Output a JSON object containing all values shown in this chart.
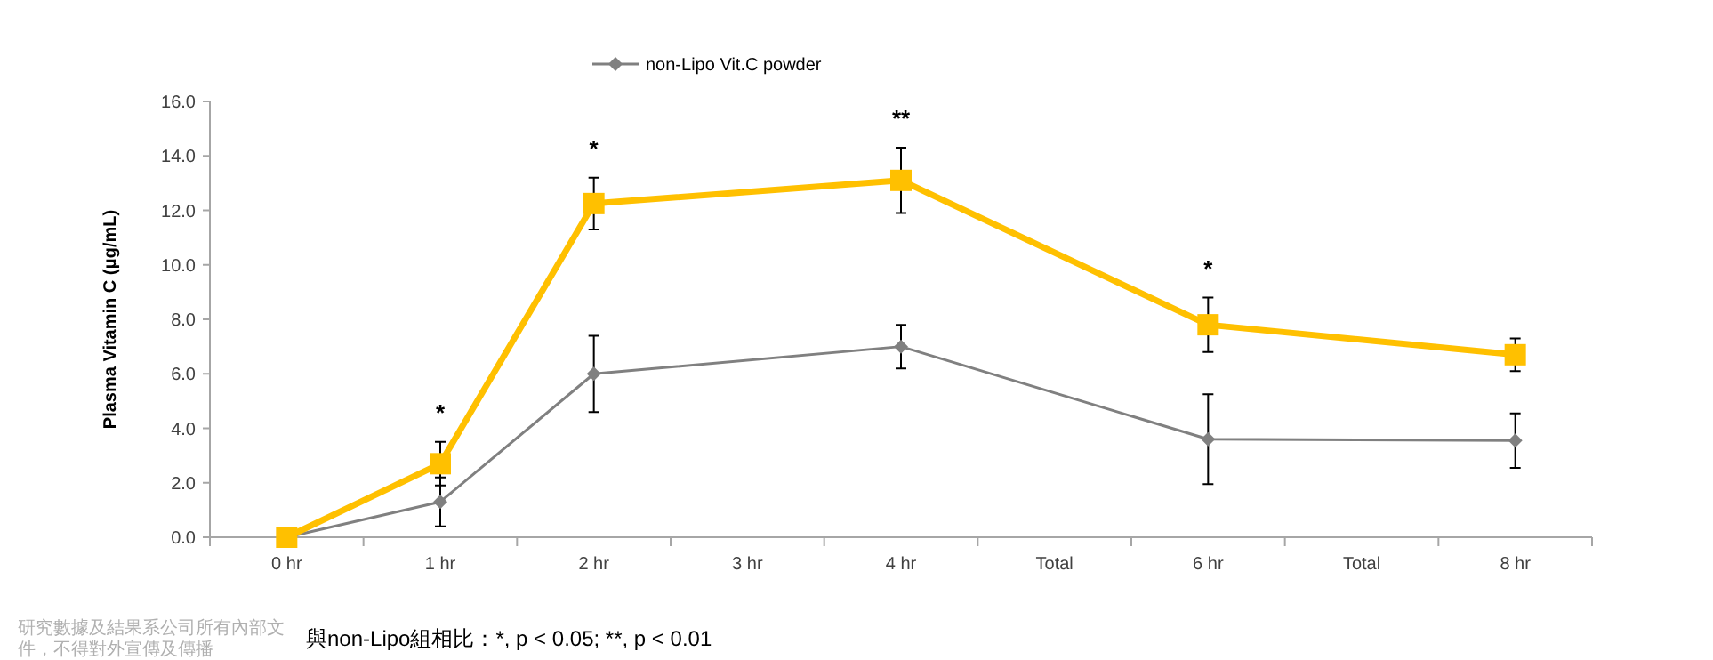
{
  "chart_data": {
    "type": "line",
    "ylabel": "Plasma Vitamin C (μg/mL)",
    "categories": [
      "0 hr",
      "1 hr",
      "2 hr",
      "3 hr",
      "4 hr",
      "Total",
      "6 hr",
      "Total",
      "8 hr"
    ],
    "series": [
      {
        "name": "non-Lipo Vit.C powder",
        "color": "#808080",
        "marker": "diamond",
        "values": [
          0,
          1.3,
          6.0,
          null,
          7.0,
          null,
          3.6,
          null,
          3.55
        ],
        "errors": [
          null,
          0.9,
          1.4,
          null,
          0.8,
          null,
          1.65,
          null,
          1.0
        ]
      },
      {
        "color": "#ffc000",
        "marker": "square",
        "values": [
          0,
          2.7,
          12.25,
          null,
          13.1,
          null,
          7.8,
          null,
          6.7
        ],
        "errors": [
          null,
          0.8,
          0.95,
          null,
          1.2,
          null,
          1.0,
          null,
          0.6
        ],
        "value_labels": [
          null,
          "*",
          "*",
          null,
          "**",
          null,
          "*",
          null,
          null
        ]
      }
    ],
    "ylim": [
      0,
      16
    ],
    "yticks": [
      {
        "value": 0,
        "label": "0.0"
      },
      {
        "value": 2,
        "label": "2.0"
      },
      {
        "value": 4,
        "label": "4.0"
      },
      {
        "value": 6,
        "label": "6.0"
      },
      {
        "value": 8,
        "label": "8.0"
      },
      {
        "value": 10,
        "label": "10.0"
      },
      {
        "value": 12,
        "label": "12.0"
      },
      {
        "value": 14,
        "label": "14.0"
      },
      {
        "value": 16,
        "label": "16.0"
      }
    ],
    "grid": false,
    "legend": "top",
    "annotations": [
      "與non-Lipo組相比：*, p < 0.05; **, p < 0.01",
      "研究數據及結果系公司所有內部文件，不得對外宣傳及傳播"
    ]
  }
}
